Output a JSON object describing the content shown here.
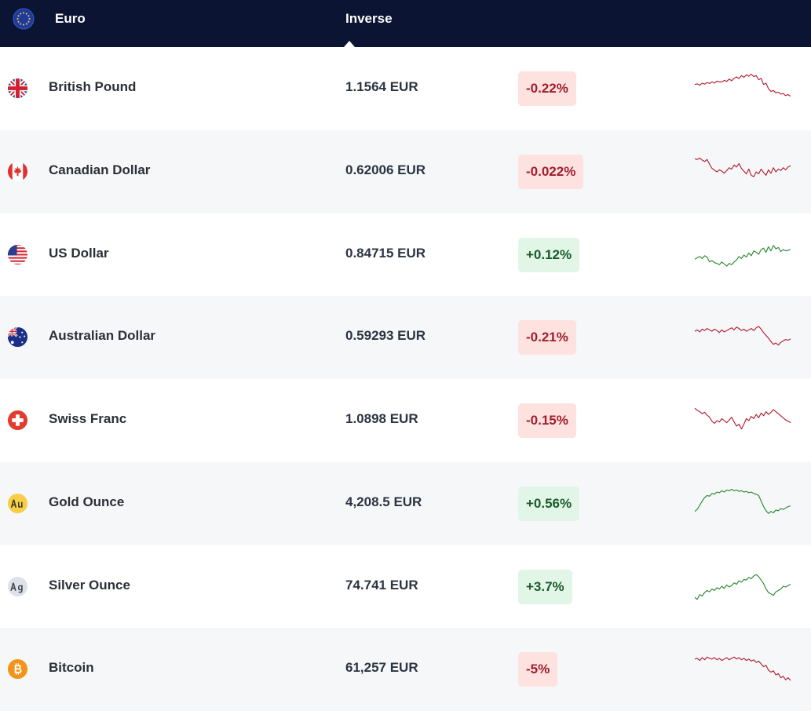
{
  "header": {
    "base_flag_icon": "eu-flag-icon",
    "base_currency": "Euro",
    "inverse_label": "Inverse"
  },
  "colors": {
    "header_bg": "#0b1533",
    "negative_text": "#a11c2c",
    "negative_bg": "#fde2e0",
    "positive_text": "#1c5a2e",
    "positive_bg": "#e1f6e6",
    "spark_negative": "#b0182e",
    "spark_positive": "#23862a"
  },
  "rows": [
    {
      "icon": "uk-flag-icon",
      "name": "British Pound",
      "rate": "1.1564 EUR",
      "change": "-0.22%",
      "direction": "down",
      "spark": [
        0.62,
        0.64,
        0.6,
        0.66,
        0.63,
        0.68,
        0.65,
        0.7,
        0.66,
        0.72,
        0.7,
        0.69,
        0.74,
        0.71,
        0.78,
        0.73,
        0.8,
        0.84,
        0.79,
        0.88,
        0.83,
        0.9,
        0.86,
        0.92,
        0.85,
        0.88,
        0.76,
        0.8,
        0.62,
        0.66,
        0.5,
        0.42,
        0.45,
        0.38,
        0.4,
        0.34,
        0.36,
        0.3,
        0.33,
        0.28
      ]
    },
    {
      "icon": "canada-flag-icon",
      "name": "Canadian Dollar",
      "rate": "0.62006 EUR",
      "change": "-0.022%",
      "direction": "down",
      "spark": [
        0.88,
        0.86,
        0.9,
        0.84,
        0.8,
        0.86,
        0.72,
        0.6,
        0.55,
        0.5,
        0.56,
        0.52,
        0.46,
        0.54,
        0.62,
        0.58,
        0.7,
        0.64,
        0.74,
        0.6,
        0.52,
        0.44,
        0.58,
        0.4,
        0.36,
        0.5,
        0.44,
        0.58,
        0.48,
        0.4,
        0.56,
        0.46,
        0.62,
        0.5,
        0.58,
        0.54,
        0.62,
        0.56,
        0.64,
        0.68
      ]
    },
    {
      "icon": "us-flag-icon",
      "name": "US Dollar",
      "rate": "0.84715 EUR",
      "change": "+0.12%",
      "direction": "up",
      "spark": [
        0.38,
        0.42,
        0.46,
        0.4,
        0.48,
        0.44,
        0.3,
        0.34,
        0.28,
        0.26,
        0.22,
        0.3,
        0.24,
        0.18,
        0.26,
        0.22,
        0.3,
        0.36,
        0.46,
        0.4,
        0.5,
        0.44,
        0.56,
        0.48,
        0.62,
        0.58,
        0.52,
        0.66,
        0.7,
        0.58,
        0.74,
        0.62,
        0.78,
        0.68,
        0.72,
        0.6,
        0.66,
        0.62,
        0.64,
        0.66
      ]
    },
    {
      "icon": "australia-flag-icon",
      "name": "Australian Dollar",
      "rate": "0.59293 EUR",
      "change": "-0.21%",
      "direction": "down",
      "spark": [
        0.68,
        0.72,
        0.66,
        0.74,
        0.7,
        0.76,
        0.72,
        0.68,
        0.74,
        0.7,
        0.64,
        0.72,
        0.66,
        0.7,
        0.74,
        0.78,
        0.72,
        0.8,
        0.76,
        0.7,
        0.74,
        0.68,
        0.72,
        0.76,
        0.7,
        0.78,
        0.82,
        0.74,
        0.64,
        0.56,
        0.48,
        0.38,
        0.3,
        0.34,
        0.28,
        0.36,
        0.4,
        0.44,
        0.42,
        0.46
      ]
    },
    {
      "icon": "swiss-cross-icon",
      "name": "Swiss Franc",
      "rate": "1.0898 EUR",
      "change": "-0.15%",
      "direction": "down",
      "spark": [
        0.86,
        0.8,
        0.76,
        0.7,
        0.74,
        0.66,
        0.6,
        0.48,
        0.42,
        0.5,
        0.46,
        0.56,
        0.5,
        0.44,
        0.52,
        0.6,
        0.46,
        0.34,
        0.4,
        0.26,
        0.4,
        0.56,
        0.5,
        0.62,
        0.56,
        0.68,
        0.58,
        0.72,
        0.64,
        0.76,
        0.68,
        0.74,
        0.82,
        0.76,
        0.7,
        0.64,
        0.58,
        0.52,
        0.48,
        0.44
      ]
    },
    {
      "icon": "gold-au-icon",
      "name": "Gold Ounce",
      "rate": "4,208.5 EUR",
      "change": "+0.56%",
      "direction": "up",
      "spark": [
        0.28,
        0.34,
        0.46,
        0.58,
        0.68,
        0.74,
        0.72,
        0.8,
        0.78,
        0.84,
        0.82,
        0.88,
        0.84,
        0.9,
        0.88,
        0.92,
        0.88,
        0.9,
        0.86,
        0.88,
        0.84,
        0.86,
        0.82,
        0.84,
        0.8,
        0.78,
        0.74,
        0.58,
        0.42,
        0.3,
        0.22,
        0.28,
        0.24,
        0.32,
        0.3,
        0.36,
        0.34,
        0.38,
        0.42,
        0.44
      ]
    },
    {
      "icon": "silver-ag-icon",
      "name": "Silver Ounce",
      "rate": "74.741 EUR",
      "change": "+3.7%",
      "direction": "up",
      "spark": [
        0.2,
        0.14,
        0.28,
        0.24,
        0.34,
        0.4,
        0.36,
        0.44,
        0.4,
        0.48,
        0.44,
        0.52,
        0.46,
        0.56,
        0.5,
        0.54,
        0.62,
        0.58,
        0.68,
        0.64,
        0.72,
        0.7,
        0.78,
        0.74,
        0.82,
        0.86,
        0.8,
        0.7,
        0.6,
        0.44,
        0.34,
        0.3,
        0.26,
        0.36,
        0.4,
        0.44,
        0.52,
        0.5,
        0.54,
        0.58
      ]
    },
    {
      "icon": "bitcoin-icon",
      "name": "Bitcoin",
      "rate": "61,257 EUR",
      "change": "-5%",
      "direction": "down",
      "spark": [
        0.8,
        0.82,
        0.76,
        0.84,
        0.78,
        0.86,
        0.82,
        0.8,
        0.84,
        0.78,
        0.82,
        0.76,
        0.8,
        0.84,
        0.78,
        0.82,
        0.86,
        0.8,
        0.84,
        0.78,
        0.82,
        0.76,
        0.8,
        0.74,
        0.78,
        0.7,
        0.74,
        0.66,
        0.58,
        0.62,
        0.48,
        0.42,
        0.46,
        0.34,
        0.38,
        0.26,
        0.3,
        0.2,
        0.26,
        0.18
      ]
    }
  ]
}
